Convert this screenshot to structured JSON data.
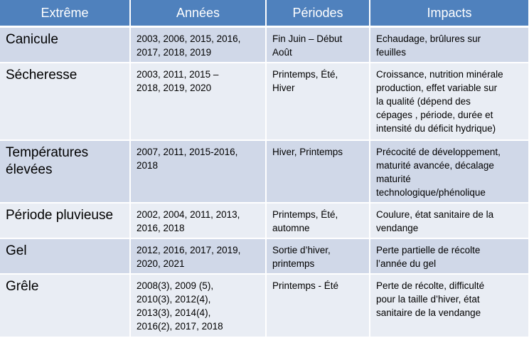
{
  "table": {
    "headers": [
      "Extrême",
      "Années",
      "Périodes",
      "Impacts"
    ],
    "rows": [
      [
        [
          "Canicule"
        ],
        [
          "2003, 2006, 2015, 2016,",
          "2017, 2018, 2019"
        ],
        [
          "Fin Juin – Début",
          "Août"
        ],
        [
          "Echaudage,  brûlures sur",
          "feuilles"
        ]
      ],
      [
        [
          "Sécheresse"
        ],
        [
          "2003, 2011, 2015 –",
          "2018, 2019, 2020"
        ],
        [
          "Printemps, Été,",
          "Hiver"
        ],
        [
          "Croissance, nutrition minérale",
          "production,  effet variable sur",
          "la qualité  (dépend des",
          "cépages , période, durée et",
          "intensité du déficit hydrique)"
        ]
      ],
      [
        [
          "Températures",
          "élevées"
        ],
        [
          "2007, 2011, 2015-2016,",
          "2018"
        ],
        [
          "Hiver, Printemps"
        ],
        [
          "Précocité de développement,",
          "maturité  avancée, décalage",
          "maturité",
          "technologique/phénolique"
        ]
      ],
      [
        [
          "Période pluvieuse"
        ],
        [
          "2002, 2004, 2011, 2013,",
          "2016, 2018"
        ],
        [
          "Printemps, Été,",
          "automne"
        ],
        [
          "Coulure, état sanitaire de la",
          "vendange"
        ]
      ],
      [
        [
          "Gel"
        ],
        [
          "2012, 2016, 2017, 2019,",
          "2020, 2021"
        ],
        [
          "Sortie d’hiver,",
          "printemps"
        ],
        [
          "Perte partielle de récolte",
          "l’année du gel"
        ]
      ],
      [
        [
          "Grêle"
        ],
        [
          "2008(3), 2009 (5),",
          "2010(3), 2012(4),",
          "2013(3), 2014(4),",
          "2016(2), 2017, 2018"
        ],
        [
          "Printemps - Été"
        ],
        [
          "Perte de récolte, difficulté",
          "pour la taille d’hiver, état",
          "sanitaire de la vendange"
        ]
      ]
    ]
  }
}
